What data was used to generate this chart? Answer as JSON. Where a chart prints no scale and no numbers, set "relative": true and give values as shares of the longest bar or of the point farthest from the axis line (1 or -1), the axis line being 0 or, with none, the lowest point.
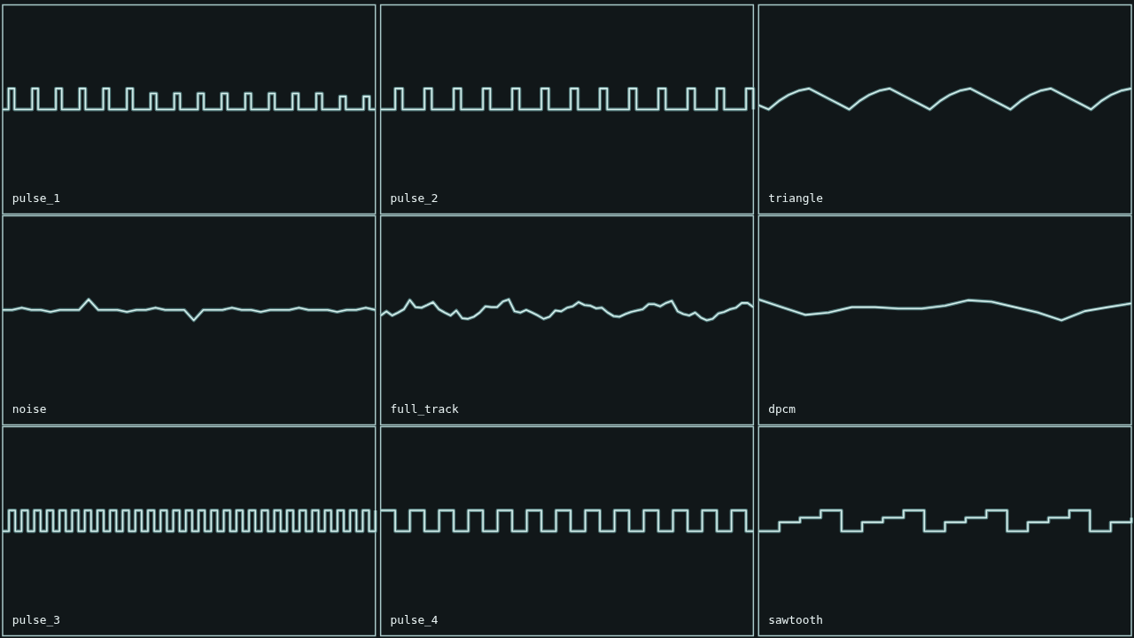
{
  "chart_data": [
    {
      "type": "step",
      "title": "pulse_1",
      "relative": true,
      "color": "#d6efec",
      "categories": [
        null,
        null,
        null,
        null,
        null,
        null,
        null,
        null,
        null,
        null,
        null,
        null,
        null,
        null,
        null,
        null,
        null,
        null,
        null,
        null,
        null,
        null,
        null,
        null,
        null,
        null,
        null,
        null,
        null,
        null,
        null,
        null,
        null,
        null,
        null,
        null,
        null,
        null,
        null,
        null,
        null,
        null,
        null,
        null,
        null,
        null,
        null,
        null,
        null,
        null,
        null,
        null,
        null,
        null,
        null,
        null,
        null,
        null,
        null,
        null,
        null,
        null,
        null,
        null
      ],
      "values": [
        0,
        1,
        0,
        0,
        0,
        1,
        0,
        0,
        0,
        1,
        0,
        0,
        0,
        1,
        0,
        0,
        0,
        1,
        0,
        0,
        0,
        1,
        0,
        0,
        0,
        0.76,
        0,
        0,
        0,
        0.76,
        0,
        0,
        0,
        0.76,
        0,
        0,
        0,
        0.76,
        0,
        0,
        0,
        0.76,
        0,
        0,
        0,
        0.76,
        0,
        0,
        0,
        0.76,
        0,
        0,
        0,
        0.76,
        0,
        0,
        0,
        0.62,
        0,
        0,
        0,
        0.62,
        0,
        0
      ]
    },
    {
      "type": "step",
      "title": "pulse_2",
      "relative": true,
      "color": "#d6efec",
      "categories": [
        null,
        null,
        null,
        null,
        null,
        null,
        null,
        null,
        null,
        null,
        null,
        null,
        null,
        null,
        null,
        null,
        null,
        null,
        null,
        null,
        null,
        null,
        null,
        null,
        null,
        null,
        null,
        null,
        null,
        null,
        null,
        null,
        null,
        null,
        null,
        null,
        null,
        null,
        null,
        null,
        null,
        null,
        null,
        null,
        null,
        null,
        null,
        null,
        null,
        null,
        null,
        null
      ],
      "values": [
        0,
        0,
        1,
        0,
        0,
        0,
        1,
        0,
        0,
        0,
        1,
        0,
        0,
        0,
        1,
        0,
        0,
        0,
        1,
        0,
        0,
        0,
        1,
        0,
        0,
        0,
        1,
        0,
        0,
        0,
        1,
        0,
        0,
        0,
        1,
        0,
        0,
        0,
        1,
        0,
        0,
        0,
        1,
        0,
        0,
        0,
        1,
        0,
        0,
        0,
        1,
        0
      ]
    },
    {
      "type": "line",
      "title": "triangle",
      "relative": true,
      "color": "#d6efec",
      "categories": [
        null,
        null,
        null,
        null,
        null,
        null,
        null,
        null,
        null,
        null,
        null,
        null,
        null,
        null,
        null,
        null,
        null,
        null,
        null,
        null,
        null,
        null,
        null,
        null,
        null,
        null,
        null,
        null,
        null,
        null,
        null,
        null,
        null,
        null,
        null,
        null,
        null,
        null
      ],
      "values": [
        0.2,
        0,
        0.4,
        0.7,
        0.9,
        1,
        0.75,
        0.5,
        0.25,
        0,
        0.4,
        0.7,
        0.9,
        1,
        0.75,
        0.5,
        0.25,
        0,
        0.4,
        0.7,
        0.9,
        1,
        0.75,
        0.5,
        0.25,
        0,
        0.4,
        0.7,
        0.9,
        1,
        0.75,
        0.5,
        0.25,
        0,
        0.4,
        0.7,
        0.9,
        1
      ]
    },
    {
      "type": "line",
      "title": "noise",
      "relative": true,
      "color": "#d6efec",
      "categories": [
        null,
        null,
        null,
        null,
        null,
        null,
        null,
        null,
        null,
        null,
        null,
        null,
        null,
        null,
        null,
        null,
        null,
        null,
        null,
        null,
        null,
        null,
        null,
        null,
        null,
        null,
        null,
        null,
        null,
        null,
        null,
        null,
        null,
        null,
        null,
        null,
        null,
        null,
        null,
        null
      ],
      "values": [
        0.5,
        0.5,
        0.6,
        0.5,
        0.5,
        0.4,
        0.5,
        0.5,
        0.5,
        1,
        0.5,
        0.5,
        0.5,
        0.4,
        0.5,
        0.5,
        0.6,
        0.5,
        0.5,
        0.5,
        0,
        0.5,
        0.5,
        0.5,
        0.6,
        0.5,
        0.5,
        0.4,
        0.5,
        0.5,
        0.5,
        0.6,
        0.5,
        0.5,
        0.5,
        0.4,
        0.5,
        0.5,
        0.6,
        0.5
      ]
    },
    {
      "type": "line",
      "title": "full_track",
      "relative": true,
      "color": "#d6efec",
      "categories": [
        null,
        null,
        null,
        null,
        null,
        null,
        null,
        null,
        null,
        null,
        null,
        null,
        null,
        null,
        null,
        null,
        null,
        null,
        null,
        null,
        null,
        null,
        null,
        null,
        null,
        null,
        null,
        null,
        null,
        null,
        null,
        null,
        null,
        null,
        null,
        null,
        null,
        null,
        null,
        null,
        null,
        null,
        null,
        null,
        null,
        null,
        null,
        null,
        null,
        null,
        null,
        null,
        null,
        null,
        null,
        null,
        null,
        null,
        null,
        null,
        null,
        null,
        null,
        null,
        null
      ],
      "values": [
        0.23,
        0.43,
        0.23,
        0.37,
        0.53,
        0.97,
        0.63,
        0.6,
        0.73,
        0.87,
        0.53,
        0.37,
        0.23,
        0.47,
        0.1,
        0.07,
        0.17,
        0.37,
        0.67,
        0.63,
        0.63,
        0.9,
        1,
        0.43,
        0.37,
        0.5,
        0.37,
        0.23,
        0.07,
        0.17,
        0.47,
        0.43,
        0.6,
        0.67,
        0.87,
        0.73,
        0.7,
        0.57,
        0.6,
        0.37,
        0.2,
        0.17,
        0.3,
        0.4,
        0.47,
        0.53,
        0.77,
        0.77,
        0.67,
        0.83,
        0.93,
        0.43,
        0.3,
        0.23,
        0.37,
        0.13,
        0,
        0.07,
        0.33,
        0.4,
        0.53,
        0.6,
        0.83,
        0.83,
        0.63
      ]
    },
    {
      "type": "line",
      "title": "dpcm",
      "relative": true,
      "color": "#d6efec",
      "categories": [
        null,
        null,
        null,
        null,
        null,
        null,
        null,
        null,
        null,
        null,
        null,
        null,
        null,
        null,
        null,
        null,
        null
      ],
      "values": [
        1,
        0.63,
        0.26,
        0.37,
        0.63,
        0.63,
        0.56,
        0.56,
        0.7,
        0.96,
        0.89,
        0.63,
        0.37,
        0,
        0.44,
        0.63,
        0.81
      ]
    },
    {
      "type": "step",
      "title": "pulse_3",
      "relative": true,
      "color": "#d6efec",
      "categories": [
        null,
        null,
        null,
        null,
        null,
        null,
        null,
        null,
        null,
        null,
        null,
        null,
        null,
        null,
        null,
        null,
        null,
        null,
        null,
        null,
        null,
        null,
        null,
        null,
        null,
        null,
        null,
        null,
        null,
        null,
        null,
        null,
        null,
        null,
        null,
        null,
        null,
        null,
        null,
        null,
        null,
        null,
        null,
        null,
        null,
        null,
        null,
        null,
        null,
        null,
        null,
        null,
        null,
        null,
        null,
        null,
        null,
        null,
        null,
        null
      ],
      "values": [
        0,
        1,
        0,
        1,
        0,
        1,
        0,
        1,
        0,
        1,
        0,
        1,
        0,
        1,
        0,
        1,
        0,
        1,
        0,
        1,
        0,
        1,
        0,
        1,
        0,
        1,
        0,
        1,
        0,
        1,
        0,
        1,
        0,
        1,
        0,
        1,
        0,
        1,
        0,
        1,
        0,
        1,
        0,
        1,
        0,
        1,
        0,
        1,
        0,
        1,
        0,
        1,
        0,
        1,
        0,
        1,
        0,
        1,
        0,
        1
      ]
    },
    {
      "type": "step",
      "title": "pulse_4",
      "relative": true,
      "color": "#d6efec",
      "categories": [
        null,
        null,
        null,
        null,
        null,
        null,
        null,
        null,
        null,
        null,
        null,
        null,
        null,
        null,
        null,
        null,
        null,
        null,
        null,
        null,
        null,
        null,
        null,
        null,
        null,
        null,
        null,
        null,
        null,
        null,
        null,
        null,
        null,
        null,
        null,
        null,
        null,
        null,
        null,
        null,
        null,
        null,
        null,
        null,
        null,
        null,
        null,
        null,
        null,
        null,
        null,
        null
      ],
      "values": [
        1,
        1,
        0,
        0,
        1,
        1,
        0,
        0,
        1,
        1,
        0,
        0,
        1,
        1,
        0,
        0,
        1,
        1,
        0,
        0,
        1,
        1,
        0,
        0,
        1,
        1,
        0,
        0,
        1,
        1,
        0,
        0,
        1,
        1,
        0,
        0,
        1,
        1,
        0,
        0,
        1,
        1,
        0,
        0,
        1,
        1,
        0,
        0,
        1,
        1,
        0,
        0
      ]
    },
    {
      "type": "step",
      "title": "sawtooth",
      "relative": true,
      "color": "#d6efec",
      "categories": [
        null,
        null,
        null,
        null,
        null,
        null,
        null,
        null,
        null,
        null,
        null,
        null,
        null,
        null,
        null,
        null,
        null,
        null,
        null
      ],
      "values": [
        0,
        0.43,
        0.65,
        1,
        0,
        0.43,
        0.65,
        1,
        0,
        0.43,
        0.65,
        1,
        0,
        0.43,
        0.65,
        1,
        0,
        0.43,
        0.65
      ]
    }
  ]
}
